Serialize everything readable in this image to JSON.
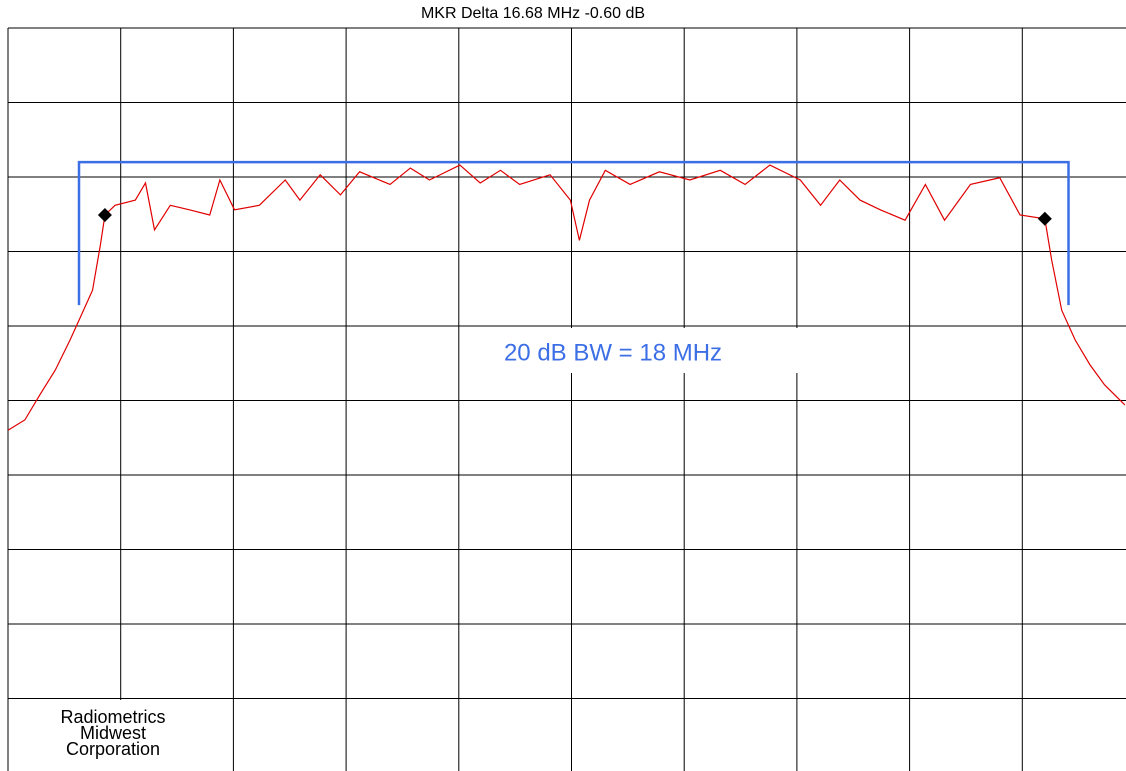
{
  "chart_data": {
    "type": "line",
    "title": "MKR Delta  16.68 MHz  -0.60 dB",
    "annotation": "20 dB BW = 18 MHz",
    "footer": [
      "Radiometrics",
      "Midwest",
      "Corporation"
    ],
    "xlim": [
      0,
      10
    ],
    "ylim": [
      0,
      10
    ],
    "xticks": [
      0,
      1,
      2,
      3,
      4,
      5,
      6,
      7,
      8,
      9,
      10
    ],
    "yticks": [
      0,
      1,
      2,
      3,
      4,
      5,
      6,
      7,
      8,
      9,
      10
    ],
    "grid": true,
    "x": [
      0,
      0.15,
      0.28,
      0.42,
      0.55,
      0.64,
      0.75,
      0.82,
      0.86,
      0.95,
      1.13,
      1.22,
      1.3,
      1.44,
      1.61,
      1.79,
      1.88,
      2.01,
      2.23,
      2.46,
      2.59,
      2.77,
      2.95,
      3.12,
      3.39,
      3.57,
      3.74,
      4.01,
      4.19,
      4.37,
      4.54,
      4.81,
      4.99,
      5.07,
      5.16,
      5.3,
      5.52,
      5.78,
      6.05,
      6.32,
      6.54,
      6.76,
      7.03,
      7.21,
      7.38,
      7.56,
      7.74,
      7.96,
      8.14,
      8.31,
      8.54,
      8.8,
      8.98,
      9.2,
      9.26,
      9.35,
      9.47,
      9.6,
      9.73,
      9.91
    ],
    "series": [
      {
        "color": "#e00000",
        "values": [
          4.6,
          4.74,
          5.07,
          5.41,
          5.81,
          6.11,
          6.48,
          7.09,
          7.49,
          7.62,
          7.69,
          7.92,
          7.29,
          7.62,
          7.56,
          7.49,
          7.96,
          7.56,
          7.62,
          7.96,
          7.69,
          8.03,
          7.76,
          8.07,
          7.9,
          8.12,
          7.96,
          8.16,
          7.92,
          8.09,
          7.9,
          8.03,
          7.69,
          7.15,
          7.69,
          8.09,
          7.9,
          8.07,
          7.96,
          8.09,
          7.9,
          8.16,
          7.96,
          7.62,
          7.96,
          7.69,
          7.56,
          7.42,
          7.9,
          7.42,
          7.9,
          7.99,
          7.49,
          7.44,
          6.89,
          6.21,
          5.81,
          5.48,
          5.21,
          4.94
        ]
      }
    ],
    "markers": {
      "x": [
        0.86,
        9.2
      ],
      "y": [
        7.49,
        7.44
      ],
      "color": "#000000"
    },
    "bw_bracket": {
      "x": [
        0.63,
        9.41
      ],
      "y": [
        6.28,
        8.2
      ],
      "color": "#3c6fe6"
    }
  }
}
